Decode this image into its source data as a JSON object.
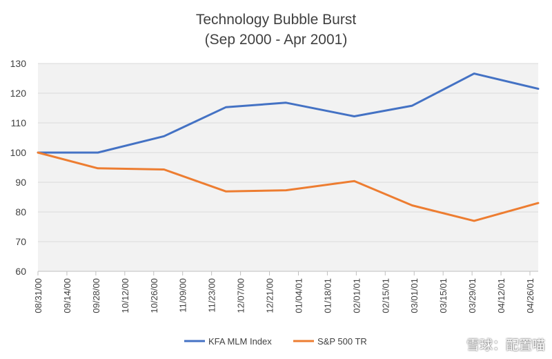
{
  "chart_data": {
    "type": "line",
    "title": "Technology Bubble Burst",
    "subtitle": "(Sep 2000 - Apr 2001)",
    "xlabel": "",
    "ylabel": "",
    "ylim": [
      60,
      130
    ],
    "yticks": [
      60,
      70,
      80,
      90,
      100,
      110,
      120,
      130
    ],
    "x_tick_labels": [
      "08/31/00",
      "09/14/00",
      "09/28/00",
      "10/12/00",
      "10/26/00",
      "11/09/00",
      "11/23/00",
      "12/07/00",
      "12/21/00",
      "01/04/01",
      "01/18/01",
      "02/01/01",
      "02/15/01",
      "03/01/01",
      "03/15/01",
      "03/29/01",
      "04/12/01",
      "04/26/01"
    ],
    "x_range": [
      "08/31/00",
      "04/30/01"
    ],
    "grid": "horizontal",
    "legend_position": "bottom",
    "series": [
      {
        "name": "KFA MLM Index",
        "color": "#4472C4",
        "x": [
          "08/31/00",
          "09/29/00",
          "10/31/00",
          "11/30/00",
          "12/29/00",
          "01/31/01",
          "02/28/01",
          "03/30/01",
          "04/30/01"
        ],
        "values": [
          100,
          100,
          105.5,
          115.3,
          116.8,
          112.2,
          115.8,
          126.6,
          121.5
        ]
      },
      {
        "name": "S&P 500 TR",
        "color": "#ED7D31",
        "x": [
          "08/31/00",
          "09/29/00",
          "10/31/00",
          "11/30/00",
          "12/29/00",
          "01/31/01",
          "02/28/01",
          "03/30/01",
          "04/30/01"
        ],
        "values": [
          100,
          94.7,
          94.3,
          86.9,
          87.3,
          90.4,
          82.2,
          77.0,
          83.0
        ]
      }
    ]
  },
  "watermark": "雪球：配置喵"
}
